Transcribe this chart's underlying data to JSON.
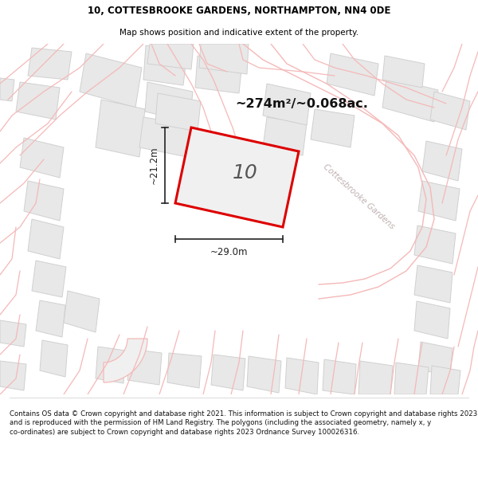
{
  "title_line1": "10, COTTESBROOKE GARDENS, NORTHAMPTON, NN4 0DE",
  "title_line2": "Map shows position and indicative extent of the property.",
  "area_text": "~274m²/~0.068ac.",
  "property_number": "10",
  "dim_width": "~29.0m",
  "dim_height": "~21.2m",
  "street_label": "Cottesbrooke Gardens",
  "footer_text": "Contains OS data © Crown copyright and database right 2021. This information is subject to Crown copyright and database rights 2023 and is reproduced with the permission of HM Land Registry. The polygons (including the associated geometry, namely x, y co-ordinates) are subject to Crown copyright and database rights 2023 Ordnance Survey 100026316.",
  "map_bg": "#ffffff",
  "building_color": "#e8e8e8",
  "building_outline": "#d0d0d0",
  "road_line_color": "#f5b8b8",
  "highlight_color": "#dd0000",
  "highlight_fill": "#f0f0f0",
  "text_color": "#000000",
  "dim_color": "#222222",
  "street_label_color": "#c0b0b0",
  "title_color": "#000000",
  "footer_color": "#111111",
  "area_text_color": "#111111"
}
